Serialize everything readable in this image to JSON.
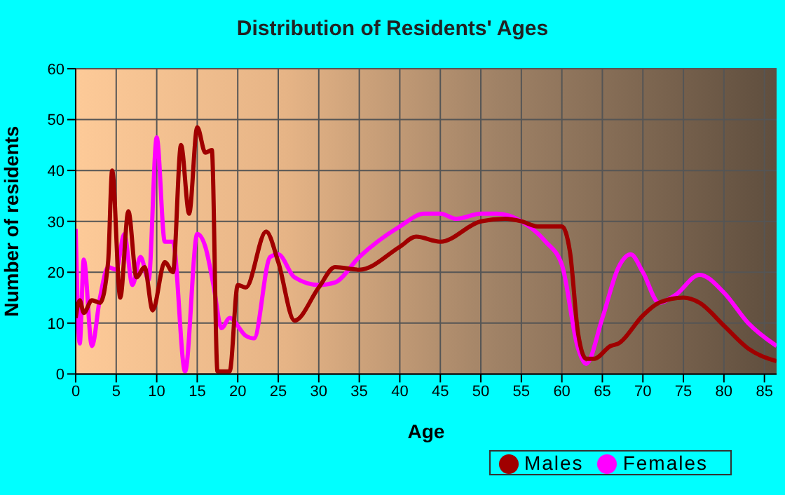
{
  "chart_data": {
    "type": "line",
    "title": "Distribution of Residents' Ages",
    "xlabel": "Age",
    "ylabel": "Number of residents",
    "xlim": [
      0,
      86.5
    ],
    "xticks": [
      0,
      5,
      10,
      15,
      20,
      25,
      30,
      35,
      40,
      45,
      50,
      55,
      60,
      65,
      70,
      75,
      80,
      85
    ],
    "ylim": [
      0,
      60
    ],
    "yticks": [
      0,
      10,
      20,
      30,
      40,
      50,
      60
    ],
    "grid": true,
    "legend": "bottom right",
    "marker": "none",
    "line_style": "solid",
    "series": [
      {
        "name": "Males",
        "color": "#a00000",
        "x": [
          0,
          0.5,
          1,
          2,
          3,
          4,
          4.5,
          5.5,
          6.5,
          7.5,
          8.5,
          9.5,
          11,
          12,
          13,
          14,
          15,
          16,
          16.8,
          17.5,
          19,
          20,
          21,
          23.5,
          25,
          27,
          30,
          32,
          35,
          40,
          42,
          45,
          50,
          53,
          55,
          57,
          60,
          61,
          62,
          63,
          64,
          66,
          67,
          70,
          72,
          75,
          77,
          80,
          83,
          86.5
        ],
        "values": [
          11,
          14.5,
          12,
          14.5,
          14,
          22,
          40,
          15,
          32,
          19,
          21,
          12.5,
          22,
          20,
          45,
          31.5,
          48.5,
          43.5,
          44,
          0.5,
          0.5,
          17.5,
          17,
          28,
          22,
          10.5,
          17,
          21,
          20.5,
          25,
          27,
          26,
          30,
          30.5,
          30,
          29,
          29,
          24,
          8,
          3,
          3,
          5.5,
          6,
          11.5,
          14,
          15,
          14,
          9.5,
          5,
          2.5
        ]
      },
      {
        "name": "Females",
        "color": "#ff00ff",
        "x": [
          0,
          0.5,
          1,
          2,
          3,
          4,
          5,
          6,
          7,
          8,
          9,
          10,
          11,
          12,
          13.5,
          15,
          16,
          17,
          18,
          19,
          21,
          22,
          24,
          25,
          27,
          30,
          32,
          35,
          40,
          43,
          45,
          47,
          50,
          52,
          55,
          58,
          60,
          62,
          63,
          65,
          67,
          68.5,
          70,
          72,
          74,
          77,
          80,
          83,
          86.5
        ],
        "values": [
          28.5,
          6,
          22.5,
          5.5,
          15,
          21,
          20.5,
          27.5,
          17.5,
          23,
          18.5,
          46.5,
          26,
          26,
          0.5,
          27.5,
          25,
          17.5,
          9,
          11,
          7.5,
          7,
          23,
          23.5,
          19,
          17.5,
          18,
          23,
          29,
          31.5,
          31.5,
          30.5,
          31.5,
          31.5,
          30,
          26,
          21.5,
          5,
          2,
          11,
          21,
          23.5,
          20,
          14,
          15.5,
          19.5,
          16,
          10,
          5.5
        ]
      }
    ]
  }
}
